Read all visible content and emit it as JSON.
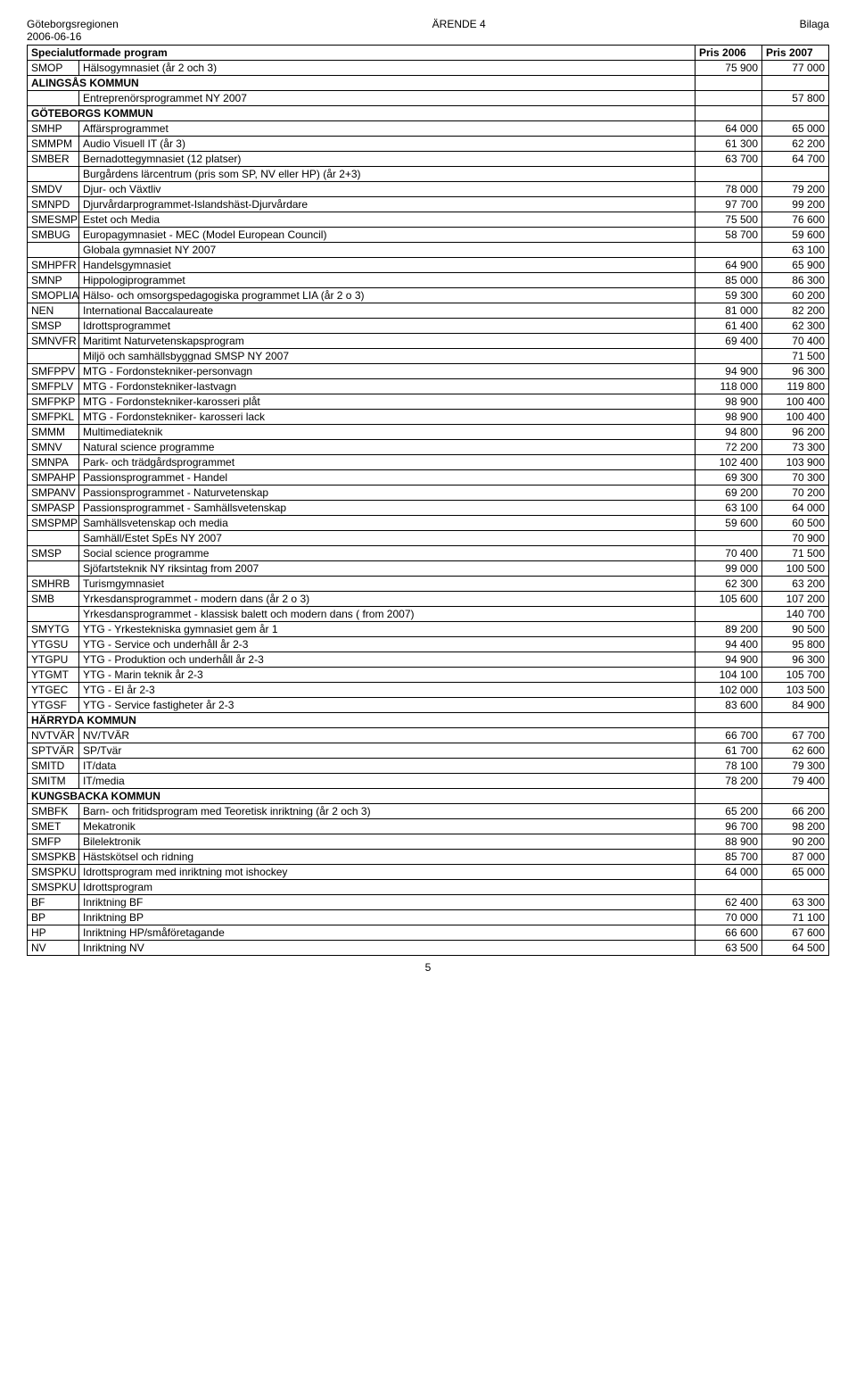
{
  "header": {
    "left": "Göteborgsregionen",
    "center": "ÄRENDE 4",
    "right": "Bilaga",
    "date": "2006-06-16",
    "page_number": "5"
  },
  "table_header": {
    "col1": "Specialutformade program",
    "col2": "Pris 2006",
    "col3": "Pris 2007"
  },
  "rows": [
    {
      "code": "SMOP",
      "name": "Hälsogymnasiet (år 2 och 3)",
      "p1": "75 900",
      "p2": "77 000"
    },
    {
      "section": "ALINGSÅS KOMMUN"
    },
    {
      "code": "",
      "name": "Entreprenörsprogrammet NY 2007",
      "p1": "",
      "p2": "57 800"
    },
    {
      "section": "GÖTEBORGS KOMMUN"
    },
    {
      "code": "SMHP",
      "name": "Affärsprogrammet",
      "p1": "64 000",
      "p2": "65 000"
    },
    {
      "code": "SMMPM",
      "name": "Audio Visuell IT (år 3)",
      "p1": "61 300",
      "p2": "62 200"
    },
    {
      "code": "SMBER",
      "name": "Bernadottegymnasiet (12 platser)",
      "p1": "63 700",
      "p2": "64 700"
    },
    {
      "code": "",
      "name": "Burgårdens lärcentrum (pris som SP, NV eller HP) (år 2+3)",
      "p1": "",
      "p2": ""
    },
    {
      "code": "SMDV",
      "name": "Djur- och Växtliv",
      "p1": "78 000",
      "p2": "79 200"
    },
    {
      "code": "SMNPD",
      "name": "Djurvårdarprogrammet-Islandshäst-Djurvårdare",
      "p1": "97 700",
      "p2": "99 200"
    },
    {
      "code": "SMESMP",
      "name": "Estet och Media",
      "p1": "75 500",
      "p2": "76 600"
    },
    {
      "code": "SMBUG",
      "name": "Europagymnasiet - MEC (Model European Council)",
      "p1": "58 700",
      "p2": "59 600"
    },
    {
      "code": "",
      "name": "Globala gymnasiet NY 2007",
      "p1": "",
      "p2": "63 100"
    },
    {
      "code": "SMHPFR",
      "name": "Handelsgymnasiet",
      "p1": "64 900",
      "p2": "65 900"
    },
    {
      "code": "SMNP",
      "name": "Hippologiprogrammet",
      "p1": "85 000",
      "p2": "86 300"
    },
    {
      "code": "SMOPLIA",
      "name": "Hälso- och omsorgspedagogiska programmet LIA (år 2 o 3)",
      "p1": "59 300",
      "p2": "60 200"
    },
    {
      "code": "NEN",
      "name": "International Baccalaureate",
      "p1": "81 000",
      "p2": "82 200"
    },
    {
      "code": "SMSP",
      "name": "Idrottsprogrammet",
      "p1": "61 400",
      "p2": "62 300"
    },
    {
      "code": "SMNVFR",
      "name": "Maritimt Naturvetenskapsprogram",
      "p1": "69 400",
      "p2": "70 400"
    },
    {
      "code": "",
      "name": "Miljö och samhällsbyggnad SMSP NY 2007",
      "p1": "",
      "p2": "71 500"
    },
    {
      "code": "SMFPPV",
      "name": "MTG - Fordonstekniker-personvagn",
      "p1": "94 900",
      "p2": "96 300"
    },
    {
      "code": "SMFPLV",
      "name": "MTG - Fordonstekniker-lastvagn",
      "p1": "118 000",
      "p2": "119 800"
    },
    {
      "code": "SMFPKP",
      "name": "MTG - Fordonstekniker-karosseri plåt",
      "p1": "98 900",
      "p2": "100 400"
    },
    {
      "code": "SMFPKL",
      "name": "MTG - Fordonstekniker- karosseri lack",
      "p1": "98 900",
      "p2": "100 400"
    },
    {
      "code": "SMMM",
      "name": "Multimediateknik",
      "p1": "94 800",
      "p2": "96 200"
    },
    {
      "code": "SMNV",
      "name": "Natural science programme",
      "p1": "72 200",
      "p2": "73 300"
    },
    {
      "code": "SMNPA",
      "name": "Park- och trädgårdsprogrammet",
      "p1": "102 400",
      "p2": "103 900"
    },
    {
      "code": "SMPAHP",
      "name": "Passionsprogrammet - Handel",
      "p1": "69 300",
      "p2": "70 300"
    },
    {
      "code": "SMPANV",
      "name": "Passionsprogrammet - Naturvetenskap",
      "p1": "69 200",
      "p2": "70 200"
    },
    {
      "code": "SMPASP",
      "name": "Passionsprogrammet - Samhällsvetenskap",
      "p1": "63 100",
      "p2": "64 000"
    },
    {
      "code": "SMSPMP",
      "name": "Samhällsvetenskap och media",
      "p1": "59 600",
      "p2": "60 500"
    },
    {
      "code": "",
      "name": "Samhäll/Estet SpEs NY 2007",
      "p1": "",
      "p2": "70 900"
    },
    {
      "code": "SMSP",
      "name": "Social science programme",
      "p1": "70 400",
      "p2": "71 500"
    },
    {
      "code": "",
      "name": "Sjöfartsteknik NY riksintag from 2007",
      "p1": "99 000",
      "p2": "100 500"
    },
    {
      "code": "SMHRB",
      "name": "Turismgymnasiet",
      "p1": "62 300",
      "p2": "63 200"
    },
    {
      "code": "SMB",
      "name": "Yrkesdansprogrammet - modern dans (år 2 o 3)",
      "p1": "105 600",
      "p2": "107 200"
    },
    {
      "code": "",
      "name": "Yrkesdansprogrammet - klassisk balett och modern dans ( from 2007)",
      "p1": "",
      "p2": "140 700"
    },
    {
      "code": "SMYTG",
      "name": "YTG - Yrkestekniska gymnasiet gem år 1",
      "p1": "89 200",
      "p2": "90 500"
    },
    {
      "code": "YTGSU",
      "name": "YTG - Service och underhåll år 2-3",
      "p1": "94 400",
      "p2": "95 800"
    },
    {
      "code": "YTGPU",
      "name": "YTG - Produktion och underhåll år 2-3",
      "p1": "94 900",
      "p2": "96 300"
    },
    {
      "code": "YTGMT",
      "name": "YTG - Marin teknik år 2-3",
      "p1": "104 100",
      "p2": "105 700"
    },
    {
      "code": "YTGEC",
      "name": "YTG - El år 2-3",
      "p1": "102 000",
      "p2": "103 500"
    },
    {
      "code": "YTGSF",
      "name": "YTG - Service fastigheter år 2-3",
      "p1": "83 600",
      "p2": "84 900"
    },
    {
      "section": "HÄRRYDA KOMMUN"
    },
    {
      "code": "NVTVÄR",
      "name": "NV/TVÄR",
      "p1": "66 700",
      "p2": "67 700"
    },
    {
      "code": "SPTVÄR",
      "name": "SP/Tvär",
      "p1": "61 700",
      "p2": "62 600"
    },
    {
      "code": "SMITD",
      "name": "IT/data",
      "p1": "78 100",
      "p2": "79 300"
    },
    {
      "code": "SMITM",
      "name": "IT/media",
      "p1": "78 200",
      "p2": "79 400"
    },
    {
      "section": "KUNGSBACKA KOMMUN"
    },
    {
      "code": "SMBFK",
      "name": "Barn- och fritidsprogram med Teoretisk inriktning (år 2 och 3)",
      "p1": "65 200",
      "p2": "66 200"
    },
    {
      "code": "SMET",
      "name": "Mekatronik",
      "p1": "96 700",
      "p2": "98 200"
    },
    {
      "code": "SMFP",
      "name": "Bilelektronik",
      "p1": "88 900",
      "p2": "90 200"
    },
    {
      "code": "SMSPKB",
      "name": "Hästskötsel och ridning",
      "p1": "85 700",
      "p2": "87 000"
    },
    {
      "code": "SMSPKU",
      "name": "Idrottsprogram med inriktning mot ishockey",
      "p1": "64 000",
      "p2": "65 000"
    },
    {
      "code": "SMSPKU",
      "name": "Idrottsprogram",
      "p1": "",
      "p2": ""
    },
    {
      "code": "BF",
      "name": "Inriktning BF",
      "p1": "62 400",
      "p2": "63 300"
    },
    {
      "code": "BP",
      "name": "Inriktning BP",
      "p1": "70 000",
      "p2": "71 100"
    },
    {
      "code": "HP",
      "name": "Inriktning HP/småföretagande",
      "p1": "66 600",
      "p2": "67 600"
    },
    {
      "code": "NV",
      "name": "Inriktning NV",
      "p1": "63 500",
      "p2": "64 500"
    }
  ]
}
